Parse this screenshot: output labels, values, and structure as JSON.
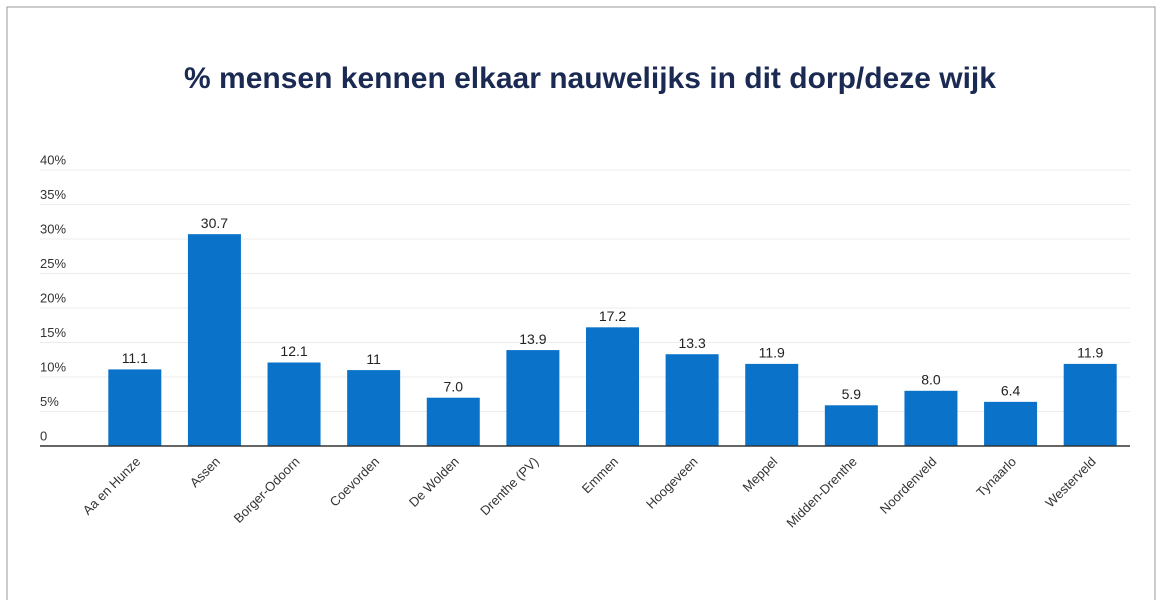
{
  "chart_data": {
    "type": "bar",
    "title": "% mensen kennen elkaar nauwelijks in dit dorp/deze wijk",
    "categories": [
      "Aa en Hunze",
      "Assen",
      "Borger-Odoorn",
      "Coevorden",
      "De Wolden",
      "Drenthe (PV)",
      "Emmen",
      "Hoogeveen",
      "Meppel",
      "Midden-Drenthe",
      "Noordenveld",
      "Tynaarlo",
      "Westerveld"
    ],
    "values": [
      11.1,
      30.7,
      12.1,
      11,
      7.0,
      13.9,
      17.2,
      13.3,
      11.9,
      5.9,
      8.0,
      6.4,
      11.9
    ],
    "value_labels": [
      "11.1",
      "30.7",
      "12.1",
      "11",
      "7.0",
      "13.9",
      "17.2",
      "13.3",
      "11.9",
      "5.9",
      "8.0",
      "6.4",
      "11.9"
    ],
    "color": "#0a72c8",
    "ylim": [
      0,
      40
    ],
    "yticks": [
      0,
      {
        "value": 5,
        "label": "5%"
      },
      {
        "value": 10,
        "label": "10%"
      },
      {
        "value": 15,
        "label": "15%"
      },
      {
        "value": 20,
        "label": "20%"
      },
      {
        "value": 25,
        "label": "25%"
      },
      {
        "value": 30,
        "label": "30%"
      },
      {
        "value": 35,
        "label": "35%"
      },
      {
        "value": 40,
        "label": "40%"
      }
    ],
    "grid": true
  }
}
